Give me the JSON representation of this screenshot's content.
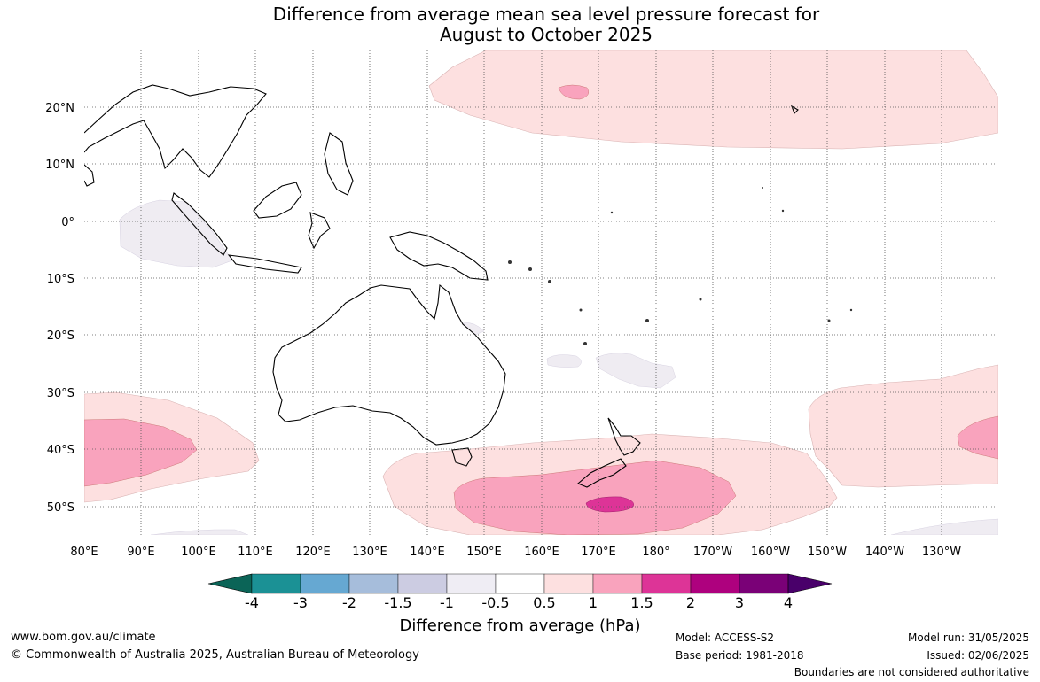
{
  "title": {
    "line1": "Difference from average mean sea level pressure forecast for",
    "line2": "August to October 2025"
  },
  "map": {
    "region": "Indian Ocean, Maritime Continent, Australia and Pacific",
    "lon_labels": [
      "80°E",
      "90°E",
      "100°E",
      "110°E",
      "120°E",
      "130°E",
      "140°E",
      "150°E",
      "160°E",
      "170°E",
      "180°",
      "170°W",
      "160°W",
      "150°W",
      "140°W",
      "130°W"
    ],
    "lat_labels": [
      "20°N",
      "10°N",
      "0°",
      "10°S",
      "20°S",
      "30°S",
      "40°S",
      "50°S"
    ],
    "colors": {
      "pos_0_5_1": "#fde0e0",
      "pos_1_1_5": "#f9a3bd",
      "pos_1_5_2": "#dd3497",
      "neg_0_5_1": "#efecf2"
    }
  },
  "colorbar": {
    "label": "Difference from average (hPa)",
    "ticks": [
      "-4",
      "-3",
      "-2",
      "-1.5",
      "-1",
      "-0.5",
      "0.5",
      "1",
      "1.5",
      "2",
      "3",
      "4"
    ],
    "colors": [
      "#0b6457",
      "#1b9195",
      "#66a8d2",
      "#a6bddb",
      "#cccce2",
      "#efedf4",
      "#ffffff",
      "#fde0e0",
      "#f9a3bd",
      "#dd3497",
      "#ae017e",
      "#7a0177",
      "#49006a"
    ]
  },
  "footer": {
    "website": "www.bom.gov.au/climate",
    "copyright": "© Commonwealth of Australia 2025, Australian Bureau of Meteorology",
    "model": "Model: ACCESS-S2",
    "base_period": "Base period: 1981-2018",
    "model_run": "Model run: 31/05/2025",
    "issued": "Issued: 02/06/2025",
    "disclaimer": "Boundaries are not considered authoritative"
  }
}
